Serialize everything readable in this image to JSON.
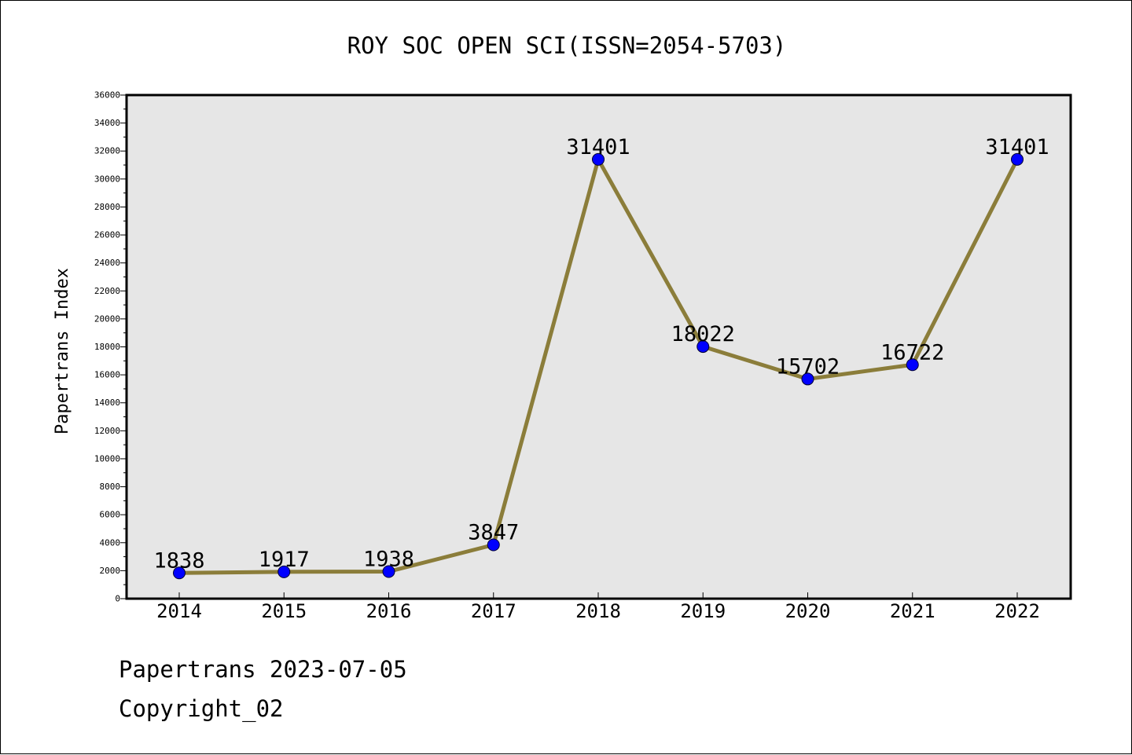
{
  "chart_data": {
    "type": "line",
    "title": "ROY SOC OPEN SCI(ISSN=2054-5703)",
    "xlabel": "",
    "ylabel": "Papertrans Index",
    "categories": [
      "2014",
      "2015",
      "2016",
      "2017",
      "2018",
      "2019",
      "2020",
      "2021",
      "2022"
    ],
    "series": [
      {
        "values": [
          1838,
          1917,
          1938,
          3847,
          31401,
          18022,
          15702,
          16722,
          31401
        ]
      }
    ],
    "data_labels": [
      "1838",
      "1917",
      "1938",
      "3847",
      "31401",
      "18022",
      "15702",
      "16722",
      "31401"
    ],
    "ylim": [
      0,
      36000
    ],
    "y_ticks": [
      0,
      2000,
      4000,
      6000,
      8000,
      10000,
      12000,
      14000,
      16000,
      18000,
      20000,
      22000,
      24000,
      26000,
      28000,
      30000,
      32000,
      34000,
      36000
    ],
    "grid": false,
    "legend": "none",
    "colors": {
      "line": "#8b7d3a",
      "marker": "#0000ff",
      "plot_background": "#e6e6e6",
      "frame": "#000000"
    }
  },
  "footer": {
    "line1": "Papertrans 2023-07-05",
    "line2": "Copyright_02"
  }
}
